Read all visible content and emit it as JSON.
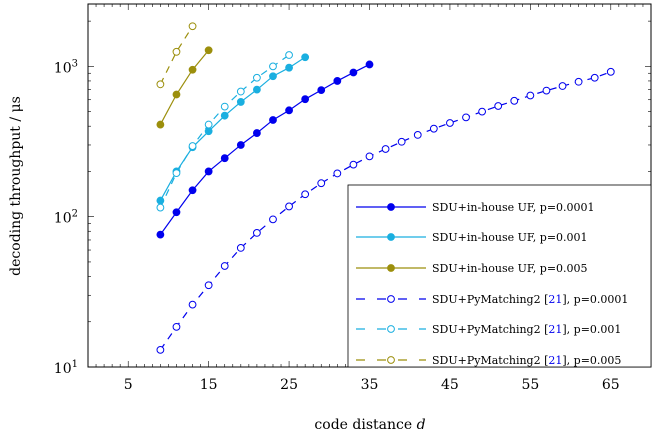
{
  "chart_data": {
    "type": "line",
    "xlabel_text": "code distance",
    "xlabel_var": "d",
    "ylabel": "decoding throughput / μs",
    "x_scale": "linear",
    "y_scale": "log",
    "xlim": [
      0,
      70
    ],
    "ylim": [
      10,
      2600
    ],
    "x_ticks": [
      5,
      15,
      25,
      35,
      45,
      55,
      65
    ],
    "x_tick_labels": [
      "5",
      "15",
      "25",
      "35",
      "45",
      "55",
      "65"
    ],
    "y_ticks": [
      10,
      100,
      1000
    ],
    "y_tick_labels": [
      {
        "base": "10",
        "exp": "1"
      },
      {
        "base": "10",
        "exp": "2"
      },
      {
        "base": "10",
        "exp": "3"
      }
    ],
    "legend": "bottom-right",
    "series": [
      {
        "name": "SDU+in-house UF, p=0.0001",
        "label_parts": [
          "SDU+in-house UF, p=0.0001"
        ],
        "color": "#0000ee",
        "style": "solid",
        "marker": "filled",
        "x": [
          9,
          11,
          13,
          15,
          17,
          19,
          21,
          23,
          25,
          27,
          29,
          31,
          33,
          35
        ],
        "y": [
          76,
          107,
          150,
          200,
          245,
          300,
          360,
          440,
          510,
          605,
          695,
          800,
          910,
          1030
        ]
      },
      {
        "name": "SDU+in-house UF, p=0.001",
        "label_parts": [
          "SDU+in-house UF, p=0.001"
        ],
        "color": "#1aafe0",
        "style": "solid",
        "marker": "filled",
        "x": [
          9,
          11,
          13,
          15,
          17,
          19,
          21,
          23,
          25,
          27
        ],
        "y": [
          128,
          200,
          290,
          370,
          470,
          580,
          700,
          860,
          980,
          1150
        ]
      },
      {
        "name": "SDU+in-house UF, p=0.005",
        "label_parts": [
          "SDU+in-house UF, p=0.005"
        ],
        "color": "#9c8f0c",
        "style": "solid",
        "marker": "filled",
        "x": [
          9,
          11,
          13,
          15
        ],
        "y": [
          410,
          650,
          950,
          1280
        ]
      },
      {
        "name": "SDU+PyMatching2 [21], p=0.0001",
        "label_parts": [
          "SDU+PyMatching2 [",
          "21",
          "], p=0.0001"
        ],
        "color": "#0000ee",
        "style": "dashed",
        "marker": "open",
        "x": [
          9,
          11,
          13,
          15,
          17,
          19,
          21,
          23,
          25,
          27,
          29,
          31,
          33,
          35,
          37,
          39,
          41,
          43,
          45,
          47,
          49,
          51,
          53,
          55,
          57,
          59,
          61,
          63,
          65
        ],
        "y": [
          13,
          18.5,
          26,
          35,
          47,
          62,
          78,
          96,
          117,
          141,
          167,
          194,
          222,
          252,
          282,
          315,
          350,
          385,
          420,
          458,
          500,
          545,
          590,
          640,
          690,
          740,
          790,
          840,
          920
        ]
      },
      {
        "name": "SDU+PyMatching2 [21], p=0.001",
        "label_parts": [
          "SDU+PyMatching2 [",
          "21",
          "], p=0.001"
        ],
        "color": "#1aafe0",
        "style": "dashed",
        "marker": "open",
        "x": [
          9,
          11,
          13,
          15,
          17,
          19,
          21,
          23,
          25
        ],
        "y": [
          115,
          195,
          295,
          410,
          540,
          680,
          840,
          1000,
          1190
        ]
      },
      {
        "name": "SDU+PyMatching2 [21], p=0.005",
        "label_parts": [
          "SDU+PyMatching2 [",
          "21",
          "], p=0.005"
        ],
        "color": "#9c8f0c",
        "style": "dashed",
        "marker": "open",
        "x": [
          9,
          11,
          13
        ],
        "y": [
          760,
          1250,
          1850
        ]
      }
    ]
  }
}
